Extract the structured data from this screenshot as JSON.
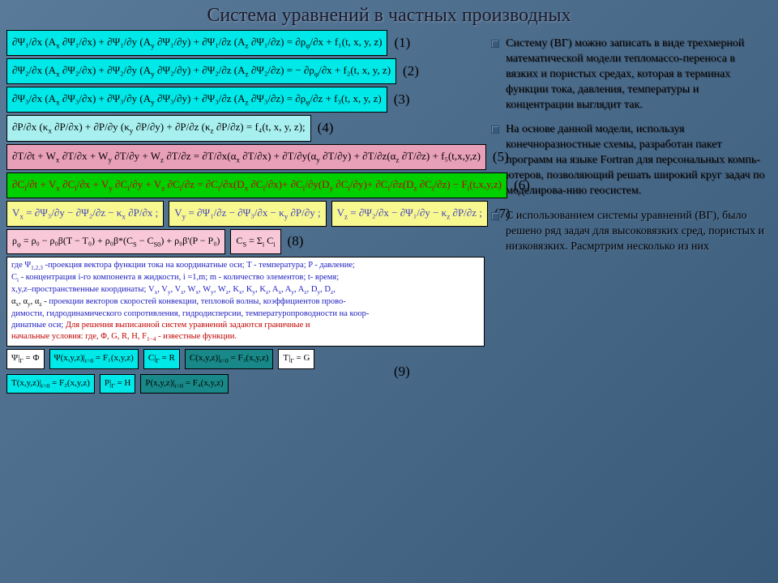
{
  "title": "Система уравнений в частных производных",
  "equations": [
    {
      "num": "(1)",
      "color": "cyan",
      "html": "∂Ψ₁/∂x (A<sub>x</sub> ∂Ψ₁/∂x) + ∂Ψ₁/∂y (A<sub>y</sub> ∂Ψ₁/∂y) + ∂Ψ₁/∂z (A<sub>z</sub> ∂Ψ₁/∂z) = ∂ρ<sub>φ</sub>/∂x + f₁(t, x, y, z)"
    },
    {
      "num": "(2)",
      "color": "cyan",
      "html": "∂Ψ₂/∂x (A<sub>x</sub> ∂Ψ₂/∂x) + ∂Ψ₂/∂y (A<sub>y</sub> ∂Ψ₂/∂y) + ∂Ψ₂/∂z (A<sub>z</sub> ∂Ψ₂/∂z) = − ∂ρ<sub>φ</sub>/∂x + f₂(t, x, y, z)"
    },
    {
      "num": "(3)",
      "color": "cyan",
      "html": "∂Ψ₃/∂x (A<sub>x</sub> ∂Ψ₃/∂x) + ∂Ψ₃/∂y (A<sub>y</sub> ∂Ψ₃/∂y) + ∂Ψ₃/∂z (A<sub>z</sub> ∂Ψ₃/∂z) = ∂ρ<sub>φ</sub>/∂z + f₃(t, x, y, z)"
    },
    {
      "num": "(4)",
      "color": "cyanL",
      "html": "∂P/∂x (κ<sub>x</sub> ∂P/∂x) + ∂P/∂y (κ<sub>y</sub> ∂P/∂y) + ∂P/∂z (κ<sub>z</sub> ∂P/∂z) = f₄(t, x, y, z);"
    },
    {
      "num": "(5)",
      "color": "pink",
      "html": "∂T/∂t + W<sub>x</sub> ∂T/∂x + W<sub>y</sub> ∂T/∂y + W<sub>z</sub> ∂T/∂z = ∂T/∂x(α<sub>x</sub> ∂T/∂x) + ∂T/∂y(α<sub>y</sub> ∂T/∂y) + ∂T/∂z(α<sub>z</sub> ∂T/∂z) + f₅(t,x,y,z)"
    },
    {
      "num": "(6)",
      "color": "green",
      "html": "∂C<sub>i</sub>/∂t + V<sub>x</sub> ∂C<sub>i</sub>/∂x + V<sub>y</sub> ∂C<sub>i</sub>/∂y + V<sub>z</sub> ∂C<sub>i</sub>/∂z = ∂C<sub>i</sub>/∂x(D<sub>x</sub> ∂C<sub>i</sub>/∂x)+ ∂C<sub>i</sub>/∂y(D<sub>y</sub> ∂C<sub>i</sub>/∂y)+ ∂C<sub>i</sub>/∂z(D<sub>z</sub> ∂C<sub>i</sub>/∂z) − F<sub>i</sub>(t,x,y,z)"
    }
  ],
  "eq7": {
    "num": "(7)",
    "parts": [
      "V<sub>x</sub> = ∂Ψ₃/∂y − ∂Ψ₂/∂z − κ<sub>x</sub> ∂P/∂x ;",
      "V<sub>y</sub> = ∂Ψ₁/∂z − ∂Ψ₃/∂x − κ<sub>y</sub> ∂P/∂y ;",
      "V<sub>z</sub> = ∂Ψ₂/∂x − ∂Ψ₁/∂y − κ<sub>z</sub> ∂P/∂z ;"
    ]
  },
  "eq8": {
    "num": "(8)",
    "a": "ρ<sub>φ</sub> = ρ₀ − ρ₀β(T − T₀) + ρ₀β*(C<sub>S</sub> − C<sub>S0</sub>) + ρ₀β'(P − P₀)",
    "b": "C<sub>S</sub> = Σ<sub>i</sub> C<sub>i</sub>"
  },
  "legend": {
    "l1": "где Ψ<sub>1,2,3</sub> -проекция вектора функции тока на координатные оси; T - температура; P - давление;",
    "l2": "C<sub>i</sub> - концентрация i-го компонента в жидкости, i =1,m; m - количество элементов; t- время;",
    "l3": "x,y,z–пространственные координаты;  V<sub>x</sub>, V<sub>y</sub>, V<sub>z</sub>, W<sub>x</sub>, W<sub>y</sub>, W<sub>z</sub>, K<sub>x</sub>, K<sub>y</sub>, K<sub>z</sub>, A<sub>x</sub>, A<sub>y</sub>, A<sub>z</sub>, D<sub>y</sub>, D<sub>z</sub>,",
    "l4k": "α<sub>x</sub>, α<sub>y</sub>, α<sub>z</sub> - ",
    "l4": "проекции векторов скоростей конвекции, тепловой волны, коэффициентов прово-",
    "l5": "димости, гидродинамического сопротивления, гидродисперсии, температуропроводности на коор-",
    "l6a": "динатные оси; ",
    "l6r": "Для решения выписанной систем уравнений задаются граничные и",
    "l7r": "начальные условия: где, Φ, G, R, H, F<sub>1−4</sub> - известные функции."
  },
  "eq9": {
    "num": "(9)",
    "parts": [
      {
        "c": "white",
        "t": "Ψ|<sub>Г</sub> = Φ"
      },
      {
        "c": "cyan",
        "t": "Ψ(x,y,z)|<sub>t=0</sub> = F₁(x,y,z)"
      },
      {
        "c": "cyan",
        "t": "C|<sub>Г</sub> = R"
      },
      {
        "c": "teal",
        "t": "C(x,y,z)|<sub>t=0</sub> = F₃(x,y,z)"
      },
      {
        "c": "white",
        "t": "T|<sub>Г</sub> = G"
      },
      {
        "c": "cyan",
        "t": "T(x,y,z)|<sub>t=0</sub> = F₂(x,y,z)"
      },
      {
        "c": "cyan",
        "t": "P|<sub>Г</sub> = H"
      },
      {
        "c": "teal",
        "t": "P(x,y,z)|<sub>t=0</sub> = F₄(x,y,z)"
      }
    ]
  },
  "bullets": [
    "Систему (ВГ) можно записать в виде трехмерной математической модели тепломассо-переноса в вязких и пористых средах, которая в терминах функции тока, давления, температуры и концентрации выглядит так.",
    "На основе данной модели, используя конечноразностные схемы, разработан пакет программ на языке Fortran для персональных компь-ютеров, позволяющий решать широкий круг задач по моделирова-нию геосистем.",
    "С использованием системы уравнений (ВГ), было решено ряд задач для высоковязких сред, пористых и низковязких. Расмртрим несколько из них"
  ]
}
